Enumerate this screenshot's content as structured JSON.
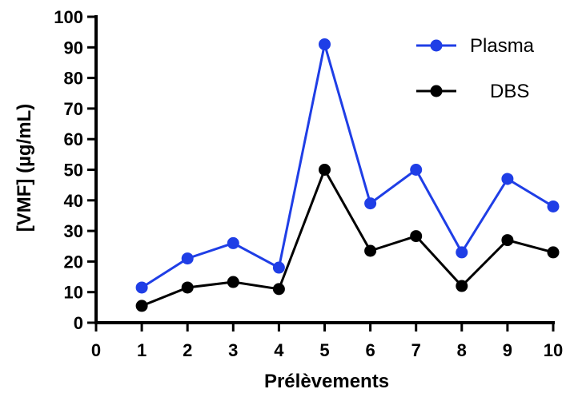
{
  "chart_data": {
    "type": "line",
    "xlabel": "Prélèvements",
    "ylabel": "[VMF] (µg/mL)",
    "xlim": [
      0,
      10
    ],
    "ylim": [
      0,
      100
    ],
    "x_ticks": [
      "0",
      "1",
      "2",
      "3",
      "4",
      "5",
      "6",
      "7",
      "8",
      "9",
      "10"
    ],
    "y_ticks": [
      "0",
      "10",
      "20",
      "30",
      "40",
      "50",
      "60",
      "70",
      "80",
      "90",
      "100"
    ],
    "x": [
      1,
      2,
      3,
      4,
      5,
      6,
      7,
      8,
      9,
      10
    ],
    "series": [
      {
        "name": "Plasma",
        "color": "#1f3ee6",
        "values": [
          11.5,
          21,
          26,
          18,
          91,
          39,
          50,
          23,
          47,
          38
        ]
      },
      {
        "name": "DBS",
        "color": "#000000",
        "values": [
          5.5,
          11.5,
          13.3,
          11,
          50,
          23.5,
          28.3,
          12,
          27,
          23
        ]
      }
    ],
    "legend_position": "top-right",
    "grid": false
  }
}
